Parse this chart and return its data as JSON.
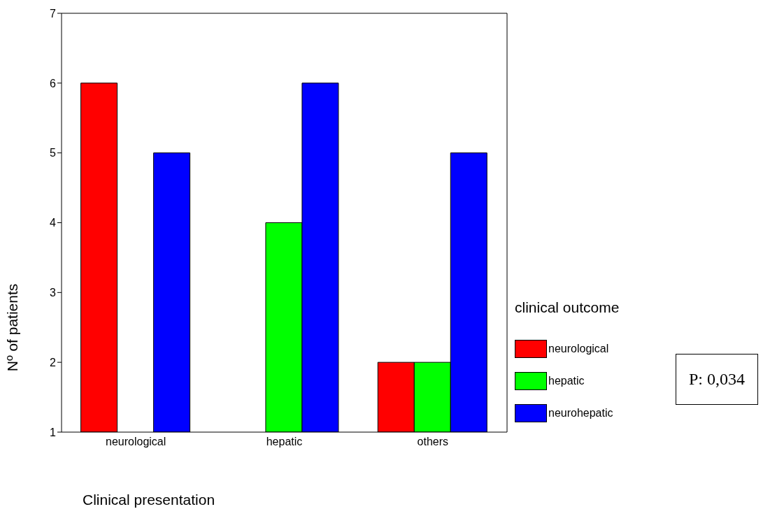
{
  "chart_data": {
    "type": "bar",
    "xlabel": "Clinical presentation",
    "ylabel": "Nº of patients",
    "legend_title": "clinical outcome",
    "categories": [
      "neurological",
      "hepatic",
      "others"
    ],
    "series": [
      {
        "name": "neurological",
        "color": "#ff0000",
        "values": [
          6,
          null,
          2
        ]
      },
      {
        "name": "hepatic",
        "color": "#00ff00",
        "values": [
          null,
          4,
          2
        ]
      },
      {
        "name": "neurohepatic",
        "color": "#0000ff",
        "values": [
          5,
          6,
          5
        ]
      }
    ],
    "ylim": [
      1,
      7
    ],
    "yticks": [
      1,
      2,
      3,
      4,
      5,
      6,
      7
    ],
    "grid": false,
    "legend": "right",
    "annotations": [
      "P: 0,034"
    ]
  }
}
